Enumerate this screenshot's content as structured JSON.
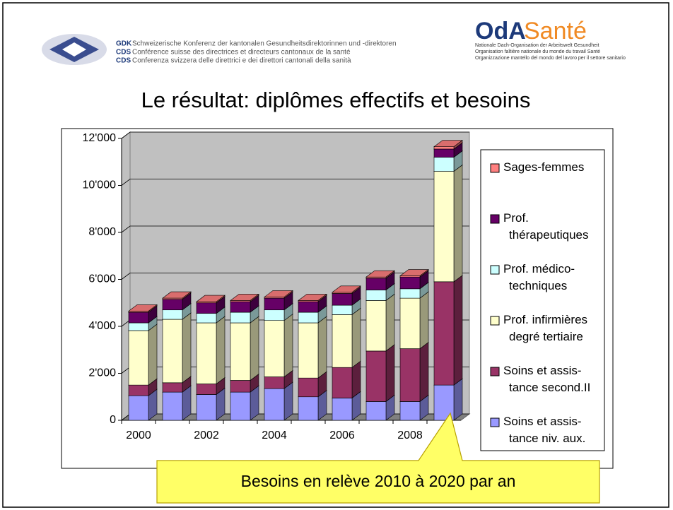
{
  "header": {
    "org_lines": [
      {
        "abbr": "GDK",
        "text": "Schweizerische Konferenz der kantonalen Gesundheitsdirektorinnen und -direktoren"
      },
      {
        "abbr": "CDS",
        "text": "Conférence suisse des directrices et directeurs cantonaux de la santé"
      },
      {
        "abbr": "CDS",
        "text": "Conferenza svizzera delle direttrici e dei direttori cantonali della sanità"
      }
    ],
    "logo_a": "OdA",
    "logo_b": "Santé",
    "logo_lines": [
      "Nationale Dach-Organisation der Arbeitswelt Gesundheit",
      "Organisation faîtière nationale du monde du travail Santé",
      "Organizzazione mantello del mondo del lavoro per il settore sanitario"
    ]
  },
  "chart_data": {
    "type": "stacked-bar-3d",
    "title": "Le résultat: diplômes effectifs et besoins",
    "callout": "Besoins en relève 2010 à 2020 par an",
    "categories": [
      "2000",
      null,
      "2002",
      null,
      "2004",
      null,
      "2006",
      null,
      "2008",
      null
    ],
    "series": [
      {
        "name": "Soins et assis-\ntance niv. aux.",
        "color": "#9999ff",
        "values": [
          1050,
          1200,
          1100,
          1200,
          1350,
          1000,
          950,
          800,
          800,
          1500
        ]
      },
      {
        "name": "Soins et assis-\ntance second.II",
        "color": "#993366",
        "values": [
          450,
          400,
          450,
          500,
          500,
          800,
          1300,
          2150,
          2250,
          4400
        ]
      },
      {
        "name": "Prof. infirmières\ndegré tertiaire",
        "color": "#ffffcc",
        "values": [
          2320,
          2700,
          2600,
          2450,
          2400,
          2350,
          2250,
          2150,
          2150,
          4700
        ]
      },
      {
        "name": "Prof. médico-\ntechniques",
        "color": "#ccffff",
        "values": [
          330,
          400,
          400,
          450,
          450,
          450,
          400,
          450,
          400,
          600
        ]
      },
      {
        "name": "Prof.\nthérapeutiques",
        "color": "#660066",
        "values": [
          450,
          450,
          450,
          450,
          500,
          450,
          500,
          500,
          500,
          350
        ]
      },
      {
        "name": "Sages-femmes",
        "color": "#ff8080",
        "values": [
          50,
          50,
          50,
          50,
          50,
          50,
          50,
          50,
          50,
          100
        ]
      }
    ],
    "ylim": [
      0,
      12000
    ],
    "yticks": [
      0,
      {
        "value": 2000,
        "label": "2'000"
      },
      {
        "value": 4000,
        "label": "4'000"
      },
      {
        "value": 6000,
        "label": "6'000"
      },
      {
        "value": 8000,
        "label": "8'000"
      },
      {
        "value": 10000,
        "label": "10'000"
      },
      {
        "value": 12000,
        "label": "12'000"
      }
    ],
    "grid": true
  }
}
